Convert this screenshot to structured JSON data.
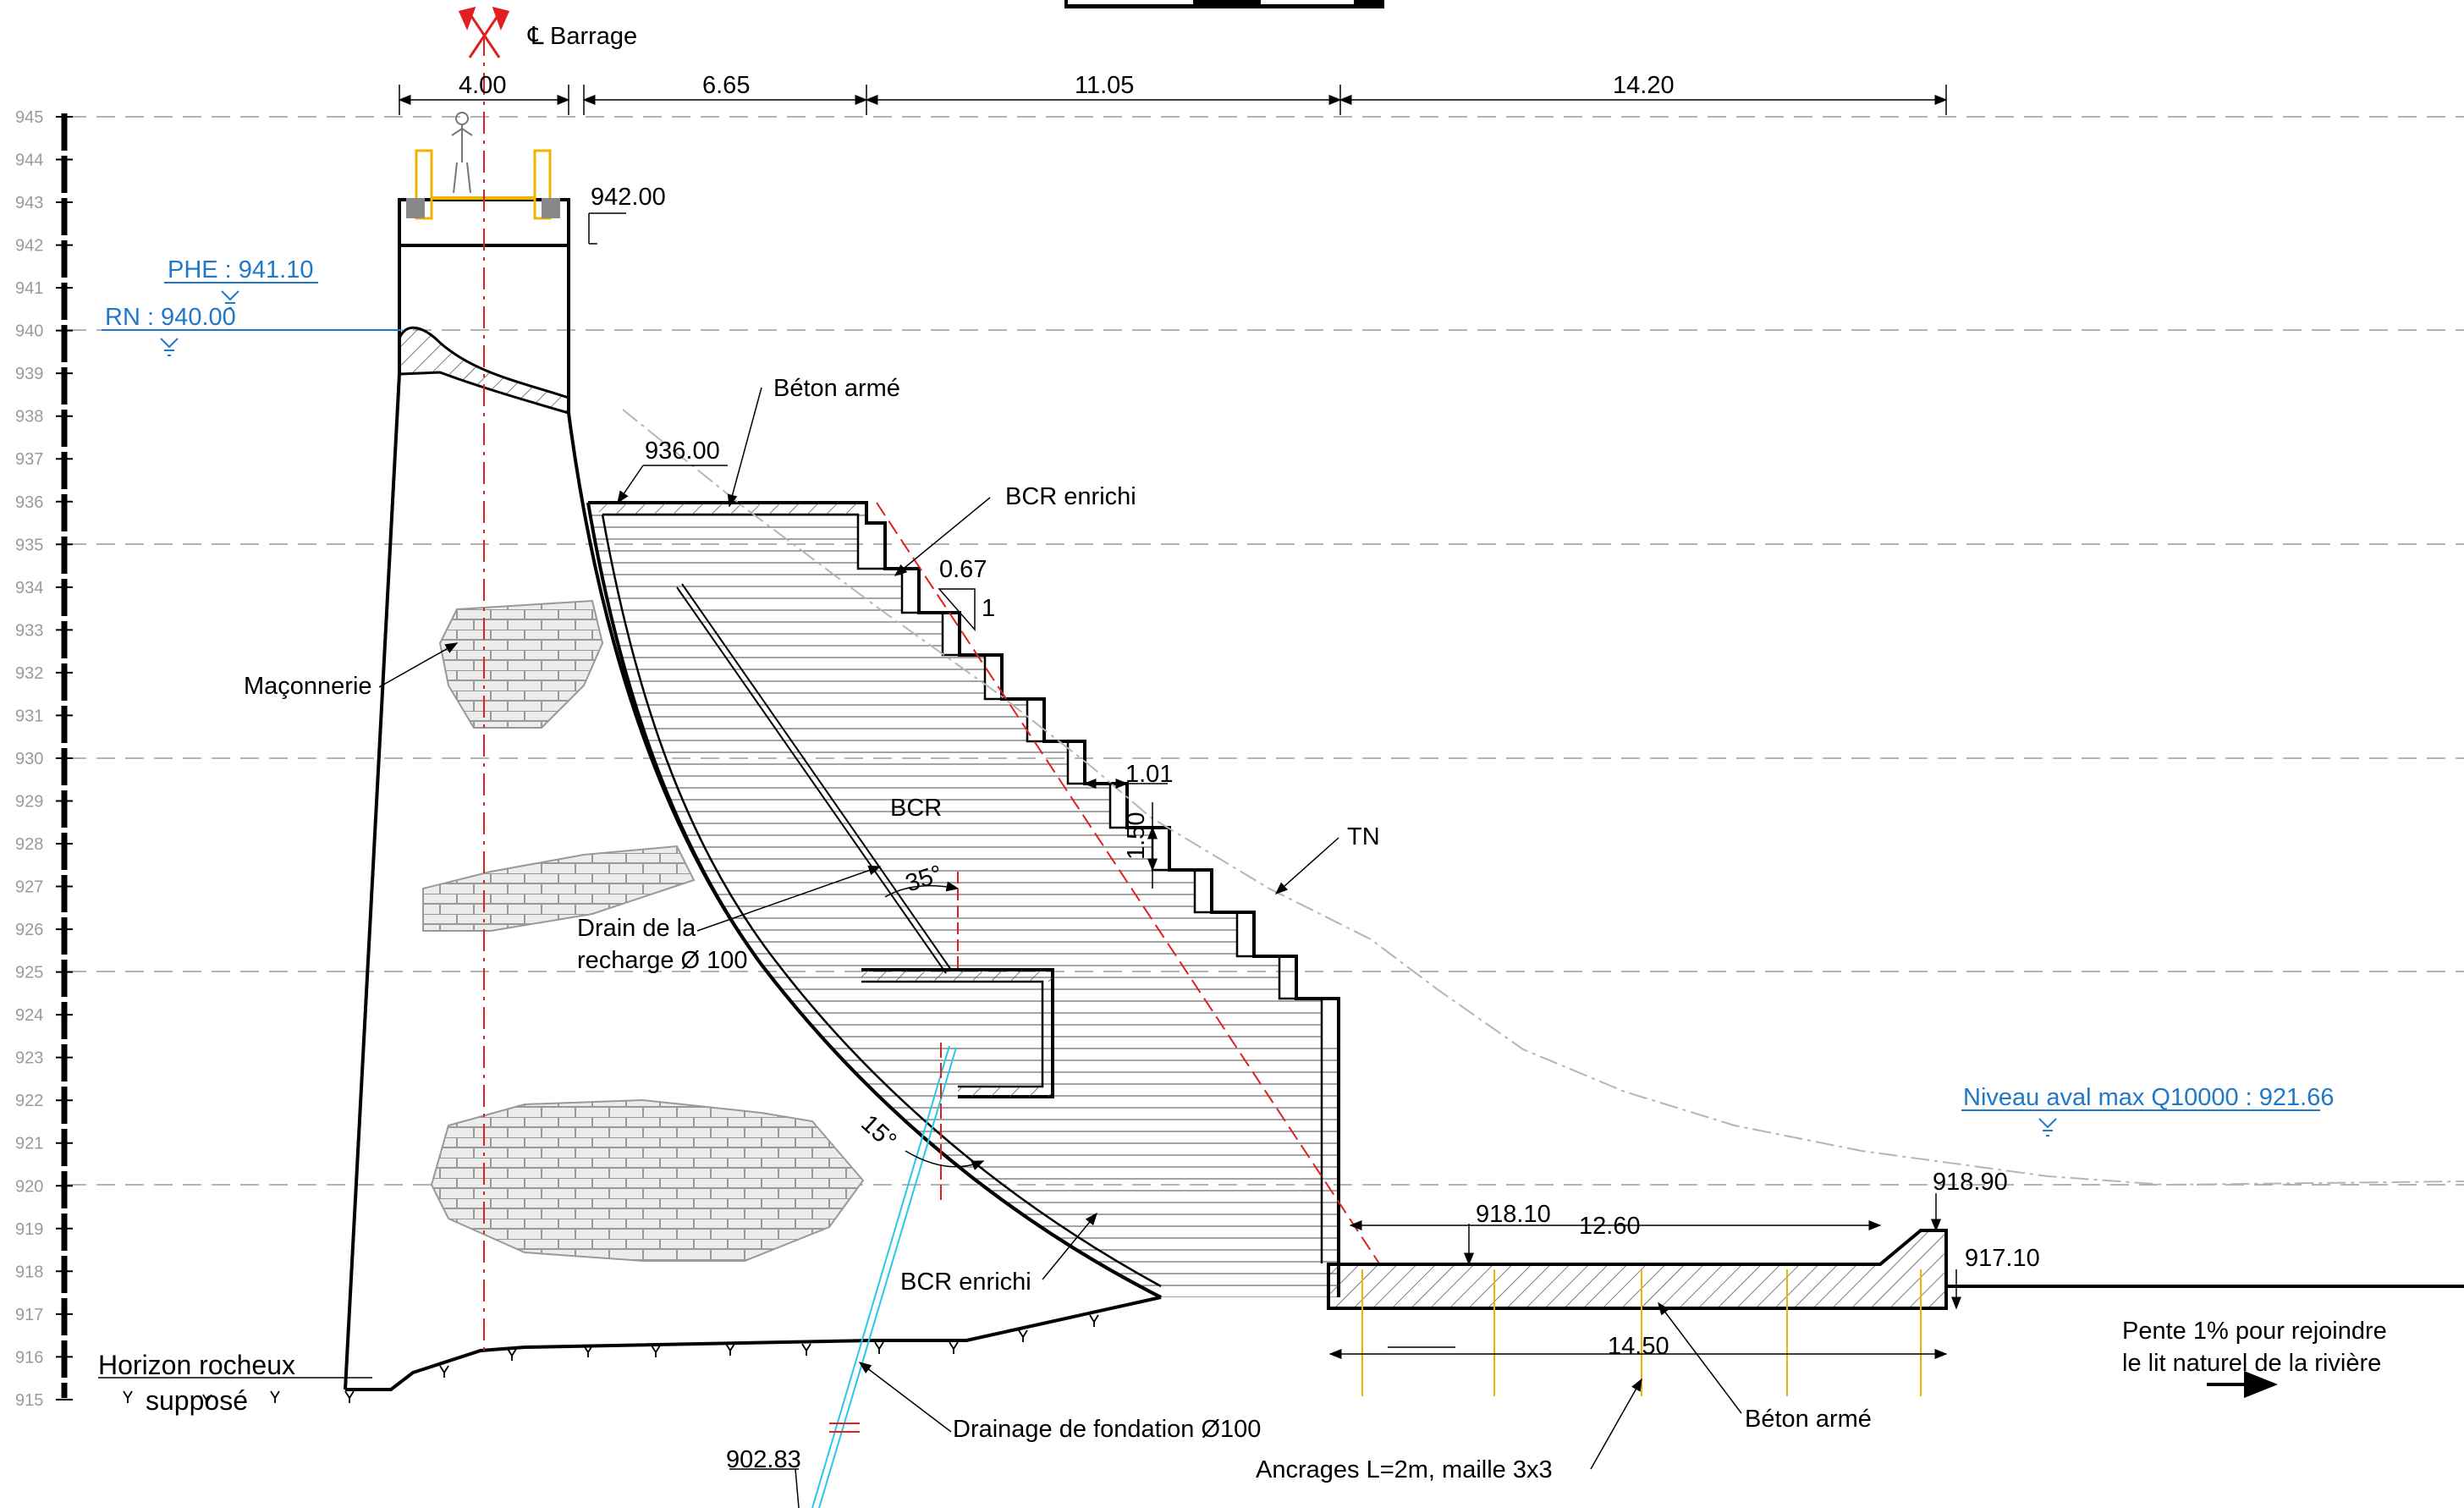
{
  "axis_label": "Barrage",
  "axis_symbol": "℄",
  "elevation_scale": [
    "945",
    "944",
    "943",
    "942",
    "941",
    "940",
    "939",
    "938",
    "937",
    "936",
    "935",
    "934",
    "933",
    "932",
    "931",
    "930",
    "929",
    "928",
    "927",
    "926",
    "925",
    "924",
    "923",
    "922",
    "921",
    "920",
    "919",
    "918",
    "917",
    "916",
    "915"
  ],
  "top_dimensions": {
    "crest_width": "4.00",
    "d1": "6.65",
    "d2": "11.05",
    "d3": "14.20"
  },
  "elevations": {
    "crest": "942.00",
    "berm": "936.00",
    "basin_floor": "918.10",
    "basin_end": "918.90",
    "outlet": "917.10",
    "drain_bottom": "902.83"
  },
  "water_levels": {
    "phe": "PHE : 941.10",
    "rn": "RN : 940.00",
    "downstream": "Niveau aval max Q10000 : 921.66"
  },
  "labels": {
    "beton_arme_top": "Béton armé",
    "bcr_enrichi_top": "BCR enrichi",
    "bcr": "BCR",
    "bcr_enrichi_bottom": "BCR enrichi",
    "maconnerie": "Maçonnerie",
    "tn": "TN",
    "drain_line1": "Drain de la",
    "drain_line2": "recharge Ø 100",
    "horizon_line1": "Horizon rocheux",
    "horizon_line2": "supposé",
    "drainage_fondation": "Drainage de fondation Ø100",
    "ancrages": "Ancrages L=2m, maille 3x3",
    "beton_arme_bottom": "Béton armé",
    "pente_line1": "Pente 1% pour rejoindre",
    "pente_line2": "le lit naturel de la rivière"
  },
  "slope": {
    "h": "0.67",
    "v": "1"
  },
  "steps": {
    "width": "1.01",
    "height": "1.50"
  },
  "angles": {
    "drain": "35°",
    "foundation": "15°"
  },
  "basin": {
    "length": "12.60",
    "total": "14.50"
  }
}
